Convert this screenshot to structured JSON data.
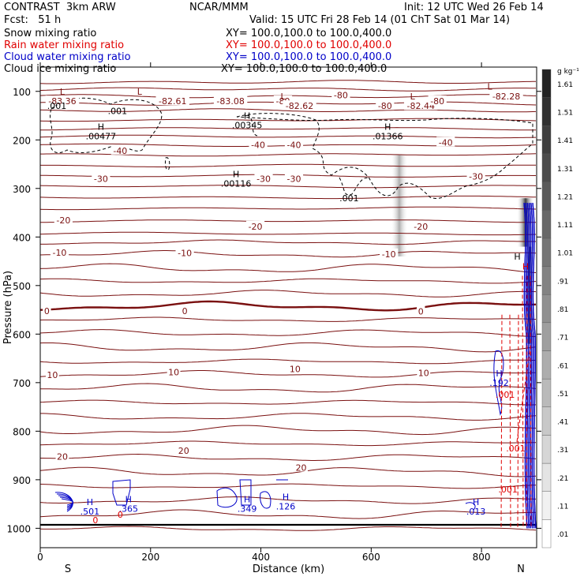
{
  "header": {
    "title": "CONTRAST  3km ARW",
    "center": "NCAR/MMM",
    "init": "Init: 12 UTC Wed 26 Feb 14",
    "fcst": "Fcst:   51 h",
    "valid": "Valid: 15 UTC Fri 28 Feb 14 (01 ChT Sat 01 Mar 14)"
  },
  "fields": [
    {
      "name": "Snow mixing ratio",
      "xy": "XY= 100.0,100.0 to 100.0,400.0",
      "color": "#000000"
    },
    {
      "name": "Rain water mixing ratio",
      "xy": "XY= 100.0,100.0 to 100.0,400.0",
      "color": "#e00000"
    },
    {
      "name": "Cloud water mixing ratio",
      "xy": "XY= 100.0,100.0 to 100.0,400.0",
      "color": "#0000c8"
    },
    {
      "name": "Cloud ice mixing ratio",
      "xy": "XY= 100.0,100.0 to 100.0,400.0",
      "color": "#000000"
    }
  ],
  "chart_data": {
    "type": "cross-section contour",
    "xlabel": "Distance (km)",
    "ylabel": "Pressure (hPa)",
    "xlim": [
      0,
      900
    ],
    "ylim": [
      1040,
      50
    ],
    "x_ticks": [
      0,
      200,
      400,
      600,
      800
    ],
    "y_ticks": [
      100,
      200,
      300,
      400,
      500,
      600,
      700,
      800,
      900,
      1000
    ],
    "endpoint_labels": {
      "left": "S",
      "right": "N"
    },
    "colorbar": {
      "unit": "g kg⁻¹",
      "levels": [
        ".01",
        ".11",
        ".21",
        ".31",
        ".41",
        ".51",
        ".61",
        ".71",
        ".81",
        ".91",
        "1.01",
        "1.11",
        "1.21",
        "1.31",
        "1.41",
        "1.51",
        "1.61"
      ]
    },
    "temperature_contours_celsius": [
      {
        "label": "-83.36",
        "x": 40,
        "p": 120
      },
      {
        "label": "-82.61",
        "x": 240,
        "p": 120
      },
      {
        "label": "-83.08",
        "x": 345,
        "p": 120
      },
      {
        "label": "-80",
        "x": 440,
        "p": 120
      },
      {
        "label": "-82.62",
        "x": 470,
        "p": 130
      },
      {
        "label": "-80",
        "x": 545,
        "p": 108
      },
      {
        "label": "-80",
        "x": 625,
        "p": 130
      },
      {
        "label": "-82.44",
        "x": 690,
        "p": 130
      },
      {
        "label": "-80",
        "x": 720,
        "p": 120
      },
      {
        "label": "-82.28",
        "x": 845,
        "p": 110
      },
      {
        "label": "-40",
        "x": 145,
        "p": 222
      },
      {
        "label": "-40",
        "x": 395,
        "p": 210
      },
      {
        "label": "-40",
        "x": 460,
        "p": 210
      },
      {
        "label": "-40",
        "x": 735,
        "p": 205
      },
      {
        "label": "-30",
        "x": 110,
        "p": 280
      },
      {
        "label": "-30",
        "x": 405,
        "p": 280
      },
      {
        "label": "-30",
        "x": 460,
        "p": 280
      },
      {
        "label": "-30",
        "x": 790,
        "p": 275
      },
      {
        "label": "-20",
        "x": 42,
        "p": 365
      },
      {
        "label": "-20",
        "x": 390,
        "p": 378
      },
      {
        "label": "-20",
        "x": 690,
        "p": 378
      },
      {
        "label": "-10",
        "x": 35,
        "p": 432
      },
      {
        "label": "-10",
        "x": 262,
        "p": 433
      },
      {
        "label": "-10",
        "x": 632,
        "p": 435
      },
      {
        "label": "0",
        "x": 12,
        "p": 552
      },
      {
        "label": "0",
        "x": 262,
        "p": 552
      },
      {
        "label": "0",
        "x": 690,
        "p": 553
      },
      {
        "label": "10",
        "x": 22,
        "p": 684
      },
      {
        "label": "10",
        "x": 242,
        "p": 678
      },
      {
        "label": "10",
        "x": 462,
        "p": 672
      },
      {
        "label": "10",
        "x": 695,
        "p": 680
      },
      {
        "label": "20",
        "x": 40,
        "p": 852
      },
      {
        "label": "20",
        "x": 260,
        "p": 840
      },
      {
        "label": "20",
        "x": 473,
        "p": 875
      }
    ],
    "maxima": [
      {
        "label": "H",
        "value": ".00477",
        "x": 110,
        "p": 187,
        "color": "#000000"
      },
      {
        "label": "H",
        "value": ".00345",
        "x": 375,
        "p": 165,
        "color": "#000000"
      },
      {
        "label": "H",
        "value": ".01366",
        "x": 630,
        "p": 187,
        "color": "#000000"
      },
      {
        "label": "H",
        "value": ".00116",
        "x": 355,
        "p": 285,
        "color": "#000000"
      },
      {
        "label": "",
        "value": ".001",
        "x": 30,
        "p": 125,
        "color": "#000000"
      },
      {
        "label": "",
        "value": ".001",
        "x": 140,
        "p": 135,
        "color": "#000000"
      },
      {
        "label": "",
        "value": ".001",
        "x": 560,
        "p": 315,
        "color": "#000000"
      },
      {
        "label": "H",
        "value": ".501",
        "x": 90,
        "p": 960,
        "color": "#0000c8"
      },
      {
        "label": "H",
        "value": ".365",
        "x": 160,
        "p": 955,
        "color": "#0000c8"
      },
      {
        "label": "H",
        "value": ".349",
        "x": 375,
        "p": 955,
        "color": "#0000c8"
      },
      {
        "label": "H",
        "value": ".126",
        "x": 445,
        "p": 950,
        "color": "#0000c8"
      },
      {
        "label": "H",
        "value": ".013",
        "x": 790,
        "p": 960,
        "color": "#0000c8"
      },
      {
        "label": "H",
        "value": ".192",
        "x": 832,
        "p": 695,
        "color": "#0000c8"
      },
      {
        "label": "",
        "value": ".001",
        "x": 843,
        "p": 720,
        "color": "#e00000"
      },
      {
        "label": "",
        "value": ".001",
        "x": 862,
        "p": 830,
        "color": "#e00000"
      },
      {
        "label": "",
        "value": ".001",
        "x": 848,
        "p": 915,
        "color": "#e00000"
      },
      {
        "label": "",
        "value": "0",
        "x": 100,
        "p": 978,
        "color": "#e00000"
      },
      {
        "label": "",
        "value": "0",
        "x": 145,
        "p": 967,
        "color": "#e00000"
      },
      {
        "label": "H",
        "value": "",
        "x": 865,
        "p": 455,
        "color": "#000000"
      },
      {
        "label": "H",
        "value": "",
        "x": 880,
        "p": 475,
        "color": "#e00000"
      }
    ],
    "lows": [
      {
        "label": "L",
        "x": 40,
        "p": 100
      },
      {
        "label": "L",
        "x": 180,
        "p": 100
      },
      {
        "label": "L",
        "x": 440,
        "p": 110
      },
      {
        "label": "L",
        "x": 675,
        "p": 110
      },
      {
        "label": "L",
        "x": 815,
        "p": 90
      }
    ]
  }
}
